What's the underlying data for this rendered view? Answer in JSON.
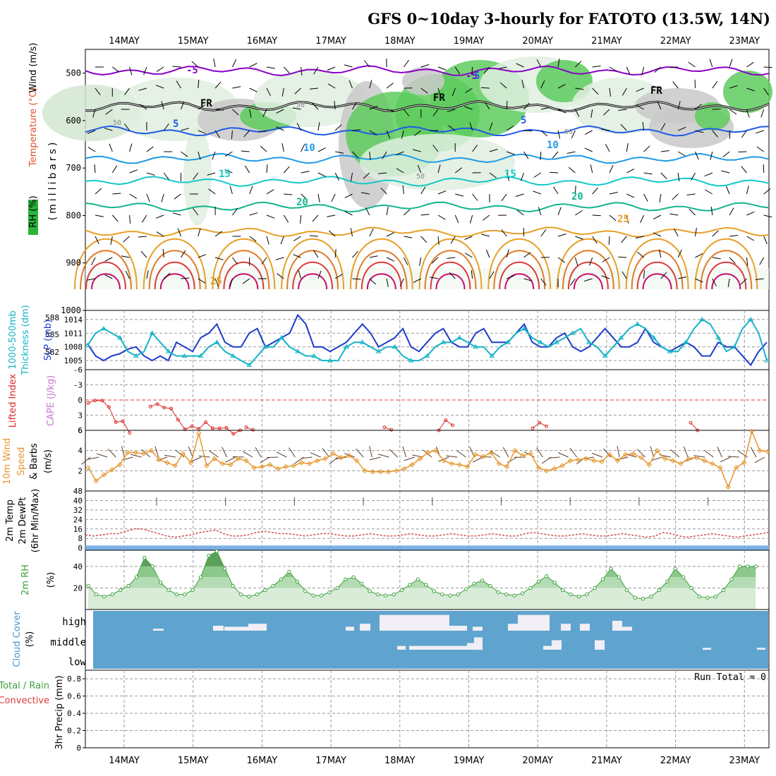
{
  "chart_data": {
    "title": "GFS 0~10day 3-hourly for FATOTO (13.5W, 14N)",
    "dates": [
      "14MAY",
      "15MAY",
      "16MAY",
      "17MAY",
      "18MAY",
      "19MAY",
      "20MAY",
      "21MAY",
      "22MAY",
      "23MAY"
    ],
    "panels": [
      {
        "type": "heatmap",
        "name": "upper-air",
        "ylabel": [
          "Wind (m/s)",
          "Temperature (°C)",
          "RH (%)",
          "(millibars)"
        ],
        "yticks": [
          "500",
          "600",
          "700",
          "800",
          "900",
          "1000"
        ],
        "yrange": [
          450,
          1000
        ],
        "contour_labels": [
          "-5",
          "FR",
          "5",
          "10",
          "15",
          "20",
          "25"
        ],
        "rh_labels": [
          "50"
        ],
        "temperature_levels": [
          {
            "label": "-5",
            "color": "#8a00c8",
            "pressure": 495
          },
          {
            "label": "FR",
            "color": "#000000",
            "pressure": 570
          },
          {
            "label": "5",
            "color": "#1e5ae6",
            "pressure": 622
          },
          {
            "label": "10",
            "color": "#1e9be6",
            "pressure": 680
          },
          {
            "label": "15",
            "color": "#14c8c8",
            "pressure": 728
          },
          {
            "label": "20",
            "color": "#14b48c",
            "pressure": 782
          },
          {
            "label": "25",
            "color": "#e6a028",
            "pressure": 835
          }
        ]
      },
      {
        "type": "line",
        "name": "slp-thickness",
        "ylabel_left": [
          "1000-500mb",
          "Thickness (dm)"
        ],
        "ylabel_right": "SLP (mb)",
        "yticks_thickness": [
          "588",
          "585",
          "582"
        ],
        "yticks_slp": [
          "1014",
          "1011",
          "1008",
          "1005"
        ],
        "slp_range": [
          1003,
          1016
        ],
        "series": [
          {
            "name": "SLP (mb)",
            "color": "#1e3cc8",
            "values": [
              1008.7,
              1006,
              1005,
              1006,
              1006.5,
              1007.5,
              1008,
              1006,
              1005,
              1006,
              1005,
              1009,
              1008,
              1007,
              1010,
              1011,
              1013,
              1009,
              1008,
              1008,
              1011,
              1012,
              1008,
              1009,
              1010,
              1011,
              1015,
              1013,
              1008,
              1008,
              1007,
              1008,
              1009,
              1011,
              1013,
              1011,
              1008,
              1009,
              1010,
              1012,
              1008,
              1007,
              1009,
              1011,
              1012,
              1009,
              1008,
              1008,
              1011,
              1012,
              1009,
              1009,
              1009,
              1011,
              1013,
              1009,
              1008,
              1008,
              1010,
              1011,
              1008,
              1007,
              1008,
              1010,
              1012,
              1010,
              1008,
              1008,
              1009,
              1012,
              1009,
              1008,
              1007,
              1008,
              1009,
              1008,
              1006,
              1006,
              1009,
              1008,
              1008,
              1006,
              1004,
              1007,
              1009
            ]
          },
          {
            "name": "1000-500mb Thickness (dm)",
            "color": "#14b4c8",
            "values": [
              1008.3,
              1011,
              1012,
              1011,
              1010,
              1007,
              1006,
              1007,
              1011,
              1009,
              1007,
              1006,
              1006,
              1006,
              1006,
              1008,
              1009,
              1007,
              1006,
              1005,
              1004,
              1006,
              1008,
              1008,
              1010,
              1008,
              1007,
              1006,
              1006,
              1005,
              1005,
              1005,
              1008,
              1009,
              1009,
              1008,
              1007,
              1008,
              1008,
              1006,
              1005,
              1005,
              1006,
              1008,
              1009,
              1009,
              1010,
              1009,
              1008,
              1008,
              1006,
              1008,
              1009,
              1011,
              1012,
              1010,
              1009,
              1008,
              1009,
              1010,
              1011,
              1012,
              1009,
              1008,
              1006,
              1008,
              1010,
              1012,
              1013,
              1012,
              1010,
              1008,
              1007,
              1007,
              1009,
              1012,
              1014,
              1013,
              1010,
              1007,
              1008,
              1012,
              1014,
              1011,
              1005
            ]
          }
        ]
      },
      {
        "type": "line",
        "name": "lifted-index-cape",
        "ylabel": [
          "Lifted Index",
          "CAPE (J/kg)"
        ],
        "yticks": [
          "-6",
          "-3",
          "0",
          "3",
          "6"
        ],
        "yrange": [
          -6,
          6
        ],
        "zero_line_color": "#e03c3c",
        "series": [
          {
            "name": "Lifted Index",
            "color": "#dc2828",
            "values": [
              0.6,
              0.1,
              0.1,
              1.4,
              4.4,
              4.2,
              6.5,
              null,
              null,
              1.3,
              0.8,
              1.5,
              1.7,
              3.9,
              5.8,
              5.2,
              5.7,
              4.4,
              5.6,
              5.6,
              5.5,
              6.7,
              6
            ]
          }
        ],
        "extra_segments": [
          {
            "values": [
              5.4,
              5.9
            ],
            "start": 32
          },
          {
            "values": [
              5.4,
              5.9
            ],
            "start": 60
          },
          {
            "values": [
              6,
              4,
              5
            ],
            "start": 71
          },
          {
            "values": [
              5.6,
              4.5,
              5.2
            ],
            "start": 90
          },
          {
            "values": [
              4.5,
              6
            ],
            "start": 122
          }
        ]
      },
      {
        "type": "line",
        "name": "wind-10m",
        "ylabel": [
          "10m Wind",
          "Speed",
          "& Barbs",
          "(m/s)"
        ],
        "yticks": [
          "6",
          "4",
          "2"
        ],
        "yrange": [
          0,
          6
        ],
        "series": [
          {
            "name": "10m Wind Speed",
            "color": "#e6962d",
            "values": [
              2.3,
              1,
              1.6,
              2.1,
              2.6,
              3.8,
              3.8,
              3.7,
              4.0,
              3.1,
              2.8,
              2.5,
              3.7,
              2.8,
              5.7,
              2.5,
              3.2,
              2.7,
              2.6,
              3.2,
              3.0,
              2.3,
              2.4,
              2.6,
              2.2,
              2.4,
              2.5,
              2.8,
              2.7,
              3.0,
              3.2,
              3.7,
              3.3,
              3.5,
              3.0,
              2.0,
              1.9,
              1.9,
              1.9,
              2.0,
              2.2,
              2.6,
              3.2,
              3.8,
              4.0,
              3.0,
              2.7,
              2.6,
              2.4,
              3.6,
              3.4,
              3.8,
              2.7,
              2.4,
              4.0,
              3.5,
              3.7,
              2.3,
              2.0,
              2.2,
              2.5,
              3.0,
              3.1,
              3.2,
              3.0,
              2.9,
              3.6,
              3.0,
              3.6,
              3.7,
              3.3,
              2.6,
              4.0,
              3.2,
              3.0,
              2.7,
              3.2,
              3.3,
              3.0,
              2.7,
              2.3,
              0.4,
              2.3,
              2.8,
              5.9,
              4.0,
              3.9
            ]
          }
        ]
      },
      {
        "type": "area",
        "name": "temperature",
        "ylabel": [
          "2m Temp",
          "2m DewPt",
          "(6hr Min/Max)"
        ],
        "yticks": [
          "48",
          "40",
          "32",
          "24",
          "16",
          "8",
          "0"
        ],
        "yrange": [
          -2,
          48
        ],
        "temp_min": 25,
        "temp_max": 43,
        "dewpoint": [
          11,
          10,
          11,
          12,
          12,
          14,
          16,
          16,
          14,
          12,
          10,
          9,
          10,
          11,
          13,
          14,
          15,
          12,
          10,
          10,
          11,
          13,
          14,
          13,
          12,
          12,
          11,
          10,
          11,
          12,
          12,
          11,
          10,
          10,
          11,
          12,
          11,
          10,
          10,
          11,
          12,
          11,
          10,
          10,
          11,
          12,
          11,
          10,
          10,
          11,
          12,
          11,
          10,
          10,
          12,
          13,
          12,
          11,
          10,
          10,
          11,
          12,
          11,
          10,
          10,
          11,
          12,
          11,
          10,
          9,
          10,
          13,
          12,
          10,
          9,
          10,
          11,
          12,
          11,
          10,
          9,
          10,
          11,
          12,
          13
        ]
      },
      {
        "type": "area",
        "name": "rh-2m",
        "ylabel": [
          "2m RH",
          "(%)"
        ],
        "yticks": [
          "40",
          "20"
        ],
        "yrange": [
          0,
          55
        ],
        "series": [
          {
            "name": "2m RH",
            "color": "#3ca03c",
            "values": [
              22,
              14,
              12,
              14,
              18,
              22,
              30,
              48,
              40,
              25,
              18,
              14,
              14,
              18,
              30,
              50,
              54,
              38,
              22,
              14,
              12,
              14,
              18,
              22,
              28,
              35,
              26,
              17,
              13,
              13,
              16,
              20,
              28,
              30,
              24,
              17,
              14,
              13,
              14,
              18,
              23,
              28,
              23,
              17,
              14,
              13,
              14,
              19,
              24,
              27,
              22,
              16,
              14,
              13,
              15,
              20,
              26,
              31,
              25,
              18,
              14,
              12,
              14,
              20,
              28,
              38,
              30,
              18,
              11,
              10,
              12,
              18,
              26,
              38,
              30,
              20,
              12,
              11,
              12,
              18,
              28,
              40,
              40,
              40
            ]
          }
        ]
      },
      {
        "type": "bar",
        "name": "cloud-cover",
        "ylabel": [
          "Cloud Cover",
          "(%)"
        ],
        "levels": [
          "high",
          "middle",
          "low"
        ],
        "colors": {
          "sky": "#5fa4cf",
          "cloud": "#f1eef6"
        }
      },
      {
        "type": "bar",
        "name": "precip",
        "ylabel": [
          "3hr Precip (mm)",
          "Total / Rain",
          "Convective"
        ],
        "yticks": [
          "0.8",
          "0.6",
          "0.4",
          "0.2",
          "0"
        ],
        "yrange": [
          0,
          0.9
        ],
        "run_total": "Run Total = 0",
        "series": []
      }
    ]
  }
}
